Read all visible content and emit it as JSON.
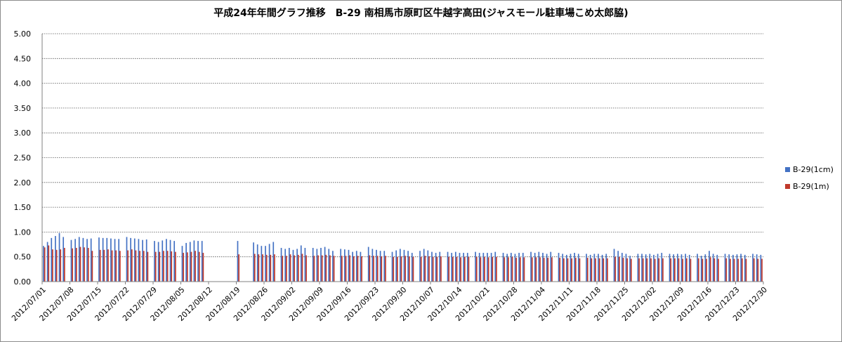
{
  "chart_data": {
    "type": "bar",
    "title": "平成24年年間グラフ推移　B-29 南相馬市原町区牛越字高田(ジャスモール駐車場こめ太郎脇)",
    "xlabel": "",
    "ylabel": "",
    "ylim": [
      0,
      5
    ],
    "yticks": [
      "0.00",
      "0.50",
      "1.00",
      "1.50",
      "2.00",
      "2.50",
      "3.00",
      "3.50",
      "4.00",
      "4.50",
      "5.00"
    ],
    "grid": true,
    "legend_position": "right",
    "date_range": [
      "2012/07/01",
      "2012/12/30"
    ],
    "xticks": [
      "2012/07/01",
      "2012/07/08",
      "2012/07/15",
      "2012/07/22",
      "2012/07/29",
      "2012/08/05",
      "2012/08/12",
      "2012/08/19",
      "2012/08/26",
      "2012/09/02",
      "2012/09/09",
      "2012/09/16",
      "2012/09/23",
      "2012/09/30",
      "2012/10/07",
      "2012/10/14",
      "2012/10/21",
      "2012/10/28",
      "2012/11/04",
      "2012/11/11",
      "2012/11/18",
      "2012/11/25",
      "2012/12/02",
      "2012/12/09",
      "2012/12/16",
      "2012/12/23",
      "2012/12/30"
    ],
    "series": [
      {
        "name": "B-29(1cm)",
        "color": "#4472c4",
        "values": [
          [
            0.72,
            0.8,
            0.88,
            0.92,
            0.98,
            0.9,
            null
          ],
          [
            0.84,
            0.86,
            0.9,
            0.88,
            0.86,
            0.87,
            null
          ],
          [
            0.89,
            0.88,
            0.88,
            0.87,
            0.86,
            0.86,
            null
          ],
          [
            0.9,
            0.88,
            0.87,
            0.86,
            0.84,
            0.85,
            null
          ],
          [
            0.82,
            0.8,
            0.83,
            0.86,
            0.84,
            0.82,
            null
          ],
          [
            0.72,
            0.78,
            0.8,
            0.83,
            0.82,
            0.82,
            null
          ],
          [
            null,
            null,
            null,
            null,
            null,
            null,
            null
          ],
          [
            0.82,
            null,
            null,
            null,
            0.79,
            0.75,
            0.72
          ],
          [
            0.72,
            0.76,
            0.8,
            null,
            0.68,
            0.66,
            0.68
          ],
          [
            0.64,
            0.66,
            0.73,
            0.68,
            null,
            0.68,
            0.66
          ],
          [
            0.68,
            0.7,
            0.66,
            0.62,
            null,
            0.66,
            0.65
          ],
          [
            0.64,
            0.6,
            0.62,
            0.6,
            null,
            0.7,
            0.66
          ],
          [
            0.64,
            0.62,
            0.62,
            null,
            0.6,
            0.63,
            0.66
          ],
          [
            0.64,
            0.62,
            0.58,
            null,
            0.62,
            0.66,
            0.63
          ],
          [
            0.6,
            0.58,
            0.6,
            null,
            0.6,
            0.58,
            0.6
          ],
          [
            0.58,
            0.58,
            0.58,
            null,
            0.6,
            0.58,
            0.58
          ],
          [
            0.58,
            0.58,
            0.6,
            null,
            0.58,
            0.56,
            0.58
          ],
          [
            0.56,
            0.58,
            0.58,
            null,
            0.6,
            0.58,
            0.6
          ],
          [
            0.58,
            0.56,
            0.6,
            null,
            0.58,
            0.56,
            0.54
          ],
          [
            0.56,
            0.58,
            0.56,
            null,
            0.56,
            0.54,
            0.56
          ],
          [
            0.56,
            0.54,
            0.56,
            null,
            0.66,
            0.62,
            0.58
          ],
          [
            0.56,
            0.52,
            null,
            0.56,
            0.56,
            0.55,
            0.56
          ],
          [
            0.54,
            0.56,
            0.58,
            null,
            0.56,
            0.55,
            0.56
          ],
          [
            0.55,
            0.56,
            0.54,
            null,
            0.56,
            0.52,
            0.55
          ],
          [
            0.62,
            0.56,
            0.54,
            null,
            0.56,
            0.55,
            0.54
          ],
          [
            0.55,
            0.56,
            0.54,
            null,
            0.56,
            0.55,
            0.54
          ]
        ]
      },
      {
        "name": "B-29(1m)",
        "color": "#c0392b",
        "values": [
          [
            0.69,
            0.73,
            0.65,
            0.64,
            0.65,
            0.68,
            null
          ],
          [
            0.67,
            0.68,
            0.7,
            0.69,
            0.68,
            0.62,
            null
          ],
          [
            0.64,
            0.64,
            0.65,
            0.63,
            0.63,
            0.62,
            null
          ],
          [
            0.63,
            0.65,
            0.63,
            0.62,
            0.62,
            0.6,
            null
          ],
          [
            0.6,
            0.6,
            0.62,
            0.62,
            0.61,
            0.6,
            null
          ],
          [
            0.58,
            0.59,
            0.6,
            0.62,
            0.6,
            0.58,
            null
          ],
          [
            null,
            null,
            null,
            null,
            null,
            null,
            null
          ],
          [
            0.55,
            null,
            null,
            null,
            0.56,
            0.55,
            0.55
          ],
          [
            0.54,
            0.54,
            0.55,
            null,
            0.52,
            0.52,
            0.55
          ],
          [
            0.53,
            0.54,
            0.56,
            0.53,
            null,
            0.52,
            0.53
          ],
          [
            0.53,
            0.54,
            0.53,
            0.52,
            null,
            0.52,
            0.52
          ],
          [
            0.53,
            0.51,
            0.52,
            0.51,
            null,
            0.53,
            0.52
          ],
          [
            0.52,
            0.51,
            0.52,
            null,
            0.5,
            0.5,
            0.51
          ],
          [
            0.52,
            0.51,
            0.5,
            null,
            0.5,
            0.52,
            0.51
          ],
          [
            0.5,
            0.5,
            0.51,
            null,
            0.5,
            0.5,
            0.5
          ],
          [
            0.49,
            0.5,
            0.5,
            null,
            0.5,
            0.49,
            0.5
          ],
          [
            0.49,
            0.5,
            0.5,
            null,
            0.49,
            0.49,
            0.5
          ],
          [
            0.48,
            0.49,
            0.49,
            null,
            0.49,
            0.49,
            0.49
          ],
          [
            0.48,
            0.48,
            0.49,
            null,
            0.48,
            0.47,
            0.47
          ],
          [
            0.47,
            0.48,
            0.47,
            null,
            0.48,
            0.47,
            0.47
          ],
          [
            0.47,
            0.47,
            0.47,
            null,
            0.5,
            0.5,
            0.48
          ],
          [
            0.47,
            0.46,
            null,
            0.47,
            0.47,
            0.47,
            0.47
          ],
          [
            0.46,
            0.47,
            0.47,
            null,
            0.47,
            0.47,
            0.47
          ],
          [
            0.46,
            0.47,
            0.46,
            null,
            0.47,
            0.46,
            0.46
          ],
          [
            0.49,
            0.47,
            0.46,
            null,
            0.47,
            0.46,
            0.46
          ],
          [
            0.46,
            0.47,
            0.46,
            null,
            0.47,
            0.46,
            0.46
          ]
        ]
      }
    ]
  }
}
